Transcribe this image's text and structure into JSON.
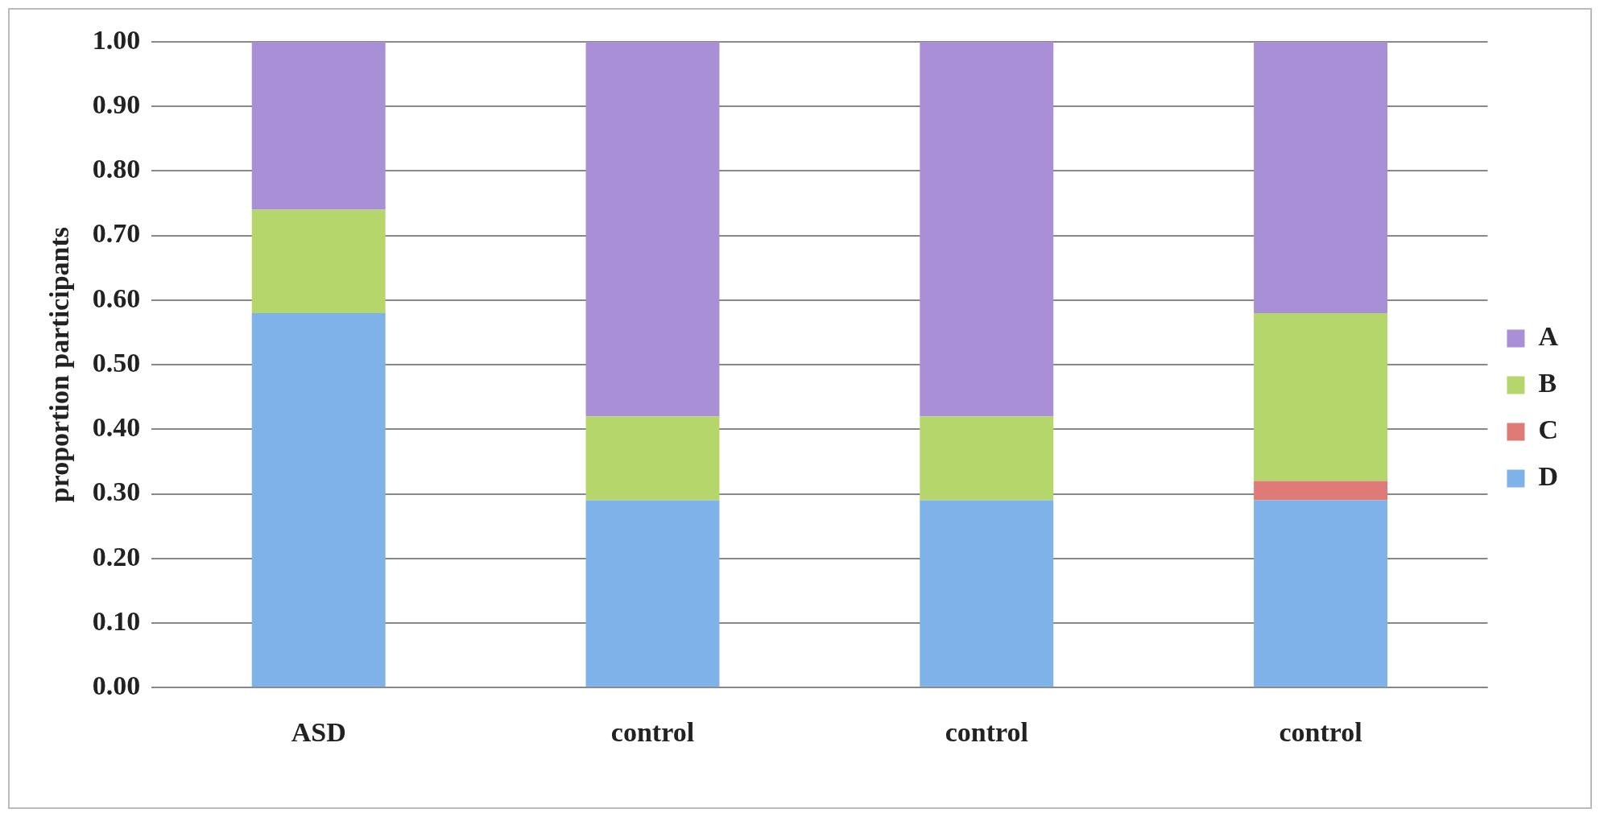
{
  "chart_data": {
    "type": "bar",
    "stacked": true,
    "ylabel": "proportion participants",
    "categories": [
      "ASD",
      "control",
      "control",
      "control"
    ],
    "series": [
      {
        "name": "D",
        "color": "#7fb2e8",
        "values": [
          0.58,
          0.29,
          0.29,
          0.29
        ]
      },
      {
        "name": "C",
        "color": "#e07a76",
        "values": [
          0,
          0,
          0,
          0.03
        ]
      },
      {
        "name": "B",
        "color": "#b5d66a",
        "values": [
          0.16,
          0.13,
          0.13,
          0.26
        ]
      },
      {
        "name": "A",
        "color": "#a98fd6",
        "values": [
          0.26,
          0.58,
          0.58,
          0.42
        ]
      }
    ],
    "ylim": [
      0,
      1
    ],
    "yticks": [
      {
        "value": 0,
        "label": "0.00"
      },
      {
        "value": 0.1,
        "label": "0.10"
      },
      {
        "value": 0.2,
        "label": "0.20"
      },
      {
        "value": 0.3,
        "label": "0.30"
      },
      {
        "value": 0.4,
        "label": "0.40"
      },
      {
        "value": 0.5,
        "label": "0.50"
      },
      {
        "value": 0.6,
        "label": "0.60"
      },
      {
        "value": 0.7,
        "label": "0.70"
      },
      {
        "value": 0.8,
        "label": "0.80"
      },
      {
        "value": 0.9,
        "label": "0.90"
      },
      {
        "value": 1,
        "label": "1.00"
      }
    ],
    "grid": "y",
    "legend": "right"
  }
}
